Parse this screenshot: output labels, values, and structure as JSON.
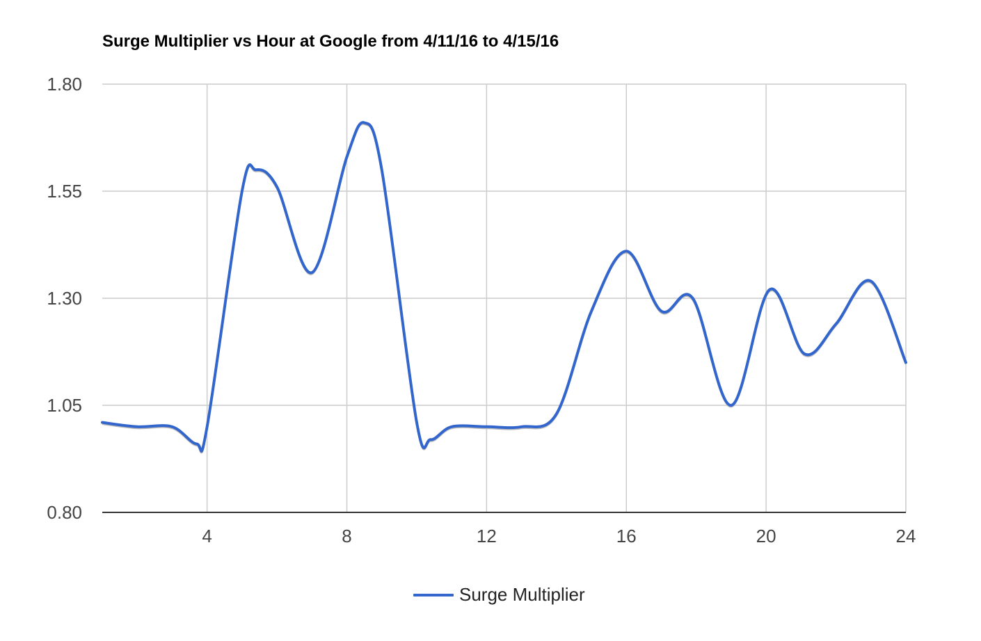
{
  "chart_data": {
    "type": "line",
    "title": "Surge Multiplier vs Hour at Google from 4/11/16 to 4/15/16",
    "xlabel": "",
    "ylabel": "",
    "xlim": [
      1,
      24
    ],
    "ylim": [
      0.8,
      1.8
    ],
    "x_ticks": [
      4,
      8,
      12,
      16,
      20,
      24
    ],
    "y_ticks": [
      0.8,
      1.05,
      1.3,
      1.55,
      1.8
    ],
    "y_tick_labels": [
      "0.80",
      "1.05",
      "1.30",
      "1.55",
      "1.80"
    ],
    "grid": true,
    "smooth": true,
    "legend_position": "bottom",
    "series": [
      {
        "name": "Surge Multiplier",
        "color": "#3366cc",
        "x": [
          1,
          2,
          3,
          3.7,
          4,
          5,
          5.4,
          6,
          7,
          8,
          8.5,
          9,
          10,
          10.4,
          11,
          12,
          13,
          14,
          15,
          16,
          17,
          17.9,
          19,
          20.1,
          21.1,
          22,
          23,
          24
        ],
        "y": [
          1.01,
          1.0,
          1.0,
          0.96,
          1.0,
          1.55,
          1.6,
          1.56,
          1.36,
          1.63,
          1.71,
          1.6,
          1.01,
          0.97,
          1.0,
          1.0,
          1.0,
          1.03,
          1.27,
          1.41,
          1.27,
          1.3,
          1.05,
          1.32,
          1.17,
          1.24,
          1.34,
          1.15
        ]
      }
    ]
  }
}
